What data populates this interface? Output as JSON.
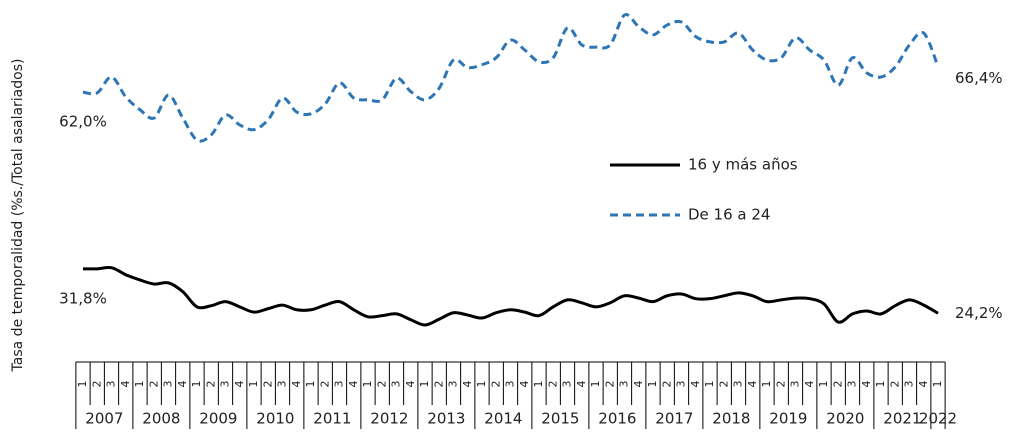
{
  "chart_data": {
    "type": "line",
    "y_axis_label": "Tasa de temporalidad (%s./Total asalariados)",
    "categories": [
      "1",
      "2",
      "3",
      "4",
      "1",
      "2",
      "3",
      "4",
      "1",
      "2",
      "3",
      "4",
      "1",
      "2",
      "3",
      "4",
      "1",
      "2",
      "3",
      "4",
      "1",
      "2",
      "3",
      "4",
      "1",
      "2",
      "3",
      "4",
      "1",
      "2",
      "3",
      "4",
      "1",
      "2",
      "3",
      "4",
      "1",
      "2",
      "3",
      "4",
      "1",
      "2",
      "3",
      "4",
      "1",
      "2",
      "3",
      "4",
      "1",
      "2",
      "3",
      "4",
      "1",
      "2",
      "3",
      "4",
      "1",
      "2",
      "3",
      "4",
      "1"
    ],
    "years": [
      "2007",
      "2008",
      "2009",
      "2010",
      "2011",
      "2012",
      "2013",
      "2014",
      "2015",
      "2016",
      "2017",
      "2018",
      "2019",
      "2020",
      "2021",
      "2022"
    ],
    "series": [
      {
        "name": "16 y más años",
        "color": "#000000",
        "dash": false,
        "values": [
          31.8,
          31.8,
          32.0,
          30.8,
          29.9,
          29.2,
          29.4,
          27.9,
          25.3,
          25.5,
          26.2,
          25.3,
          24.4,
          25.0,
          25.6,
          24.8,
          24.8,
          25.6,
          26.2,
          24.8,
          23.6,
          23.8,
          24.1,
          23.1,
          22.2,
          23.2,
          24.3,
          23.9,
          23.4,
          24.3,
          24.8,
          24.4,
          23.8,
          25.3,
          26.5,
          26.0,
          25.3,
          26.0,
          27.2,
          26.8,
          26.2,
          27.2,
          27.5,
          26.7,
          26.7,
          27.2,
          27.7,
          27.2,
          26.2,
          26.5,
          26.8,
          26.7,
          25.8,
          22.7,
          24.1,
          24.6,
          24.1,
          25.5,
          26.5,
          25.6,
          24.2
        ],
        "value_labels": [
          "31,8%",
          null,
          null,
          null,
          null,
          null,
          null,
          null,
          null,
          null,
          null,
          null,
          null,
          null,
          null,
          null,
          null,
          null,
          null,
          null,
          null,
          null,
          null,
          null,
          null,
          null,
          null,
          null,
          null,
          null,
          null,
          null,
          null,
          null,
          null,
          null,
          null,
          null,
          null,
          null,
          null,
          null,
          null,
          null,
          null,
          null,
          null,
          null,
          null,
          null,
          null,
          null,
          null,
          null,
          null,
          null,
          null,
          null,
          null,
          null,
          "24,2%"
        ]
      },
      {
        "name": "De 16 a 24",
        "color": "#2e75b6",
        "dash": true,
        "values": [
          62.0,
          61.9,
          64.6,
          61.2,
          59.0,
          57.6,
          61.5,
          57.6,
          53.8,
          54.7,
          58.1,
          56.4,
          55.6,
          57.3,
          61.0,
          58.6,
          58.3,
          60.0,
          63.6,
          61.0,
          60.7,
          60.7,
          64.4,
          62.1,
          60.7,
          62.7,
          67.5,
          66.2,
          66.7,
          67.9,
          70.9,
          69.2,
          67.2,
          67.9,
          73.0,
          70.1,
          69.7,
          70.1,
          75.2,
          73.2,
          71.8,
          73.5,
          74.0,
          71.5,
          70.6,
          70.6,
          72.1,
          69.2,
          67.5,
          67.9,
          71.3,
          69.2,
          67.5,
          63.2,
          67.9,
          65.3,
          64.6,
          66.3,
          70.1,
          72.1,
          66.4
        ],
        "value_labels": [
          "62,0%",
          null,
          null,
          null,
          null,
          null,
          null,
          null,
          null,
          null,
          null,
          null,
          null,
          null,
          null,
          null,
          null,
          null,
          null,
          null,
          null,
          null,
          null,
          null,
          null,
          null,
          null,
          null,
          null,
          null,
          null,
          null,
          null,
          null,
          null,
          null,
          null,
          null,
          null,
          null,
          null,
          null,
          null,
          null,
          null,
          null,
          null,
          null,
          null,
          null,
          null,
          null,
          null,
          null,
          null,
          null,
          null,
          null,
          null,
          null,
          "66,4%"
        ]
      }
    ]
  }
}
